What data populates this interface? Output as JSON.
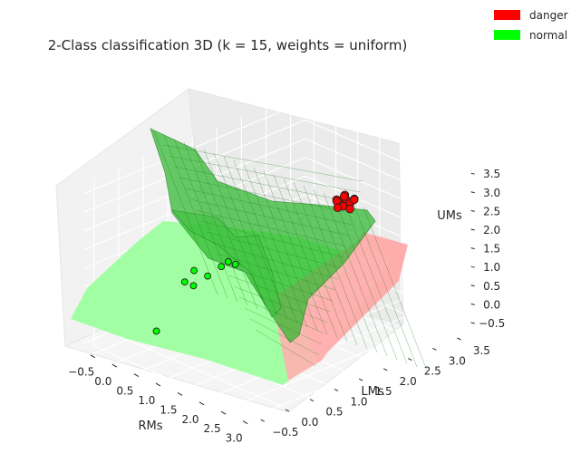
{
  "chart_data": {
    "type": "scatter",
    "title": "2-Class classification 3D (k = 15, weights = uniform)",
    "xlabel": "RMs",
    "ylabel": "LMs",
    "zlabel": "UMs",
    "x_ticks": [
      "−0.5",
      "0.0",
      "0.5",
      "1.0",
      "1.5",
      "2.0",
      "2.5",
      "3.0"
    ],
    "y_ticks": [
      "−0.5",
      "0.0",
      "0.5",
      "1.0",
      "1.5",
      "2.0",
      "2.5",
      "3.0",
      "3.5"
    ],
    "z_ticks": [
      "−0.5",
      "0.0",
      "0.5",
      "1.0",
      "1.5",
      "2.0",
      "2.5",
      "3.0",
      "3.5"
    ],
    "xlim": [
      -0.7,
      3.1
    ],
    "ylim": [
      -0.7,
      3.8
    ],
    "zlim": [
      -0.7,
      3.8
    ],
    "grid": true,
    "legend_position": "top-right",
    "legend": [
      {
        "label": "danger",
        "color": "#ff0000"
      },
      {
        "label": "normal",
        "color": "#00ff00"
      }
    ],
    "series": [
      {
        "name": "danger",
        "color": "#ff0000",
        "points": [
          {
            "x": 2.1,
            "y": 1.95,
            "z": 3.3
          },
          {
            "x": 2.15,
            "y": 2.0,
            "z": 3.25
          },
          {
            "x": 2.2,
            "y": 2.05,
            "z": 3.3
          },
          {
            "x": 2.05,
            "y": 2.0,
            "z": 3.2
          },
          {
            "x": 2.25,
            "y": 1.95,
            "z": 3.2
          },
          {
            "x": 2.12,
            "y": 2.1,
            "z": 3.35
          },
          {
            "x": 2.3,
            "y": 2.05,
            "z": 3.25
          },
          {
            "x": 2.18,
            "y": 1.9,
            "z": 3.15
          },
          {
            "x": 2.28,
            "y": 2.15,
            "z": 3.3
          },
          {
            "x": 2.08,
            "y": 2.12,
            "z": 3.28
          },
          {
            "x": 2.35,
            "y": 2.0,
            "z": 3.15
          },
          {
            "x": 2.22,
            "y": 2.2,
            "z": 3.22
          }
        ]
      },
      {
        "name": "normal",
        "color": "#00ff00",
        "points": [
          {
            "x": 0.5,
            "y": -0.3,
            "z": 0.2
          },
          {
            "x": 0.7,
            "y": 0.1,
            "z": 1.4
          },
          {
            "x": 0.8,
            "y": 0.2,
            "z": 1.7
          },
          {
            "x": 0.9,
            "y": 0.1,
            "z": 1.4
          },
          {
            "x": 1.0,
            "y": 0.3,
            "z": 1.6
          },
          {
            "x": 1.2,
            "y": 0.4,
            "z": 1.9
          },
          {
            "x": 1.3,
            "y": 0.6,
            "z": 1.9
          },
          {
            "x": 1.25,
            "y": 0.5,
            "z": 2.0
          }
        ]
      }
    ]
  }
}
